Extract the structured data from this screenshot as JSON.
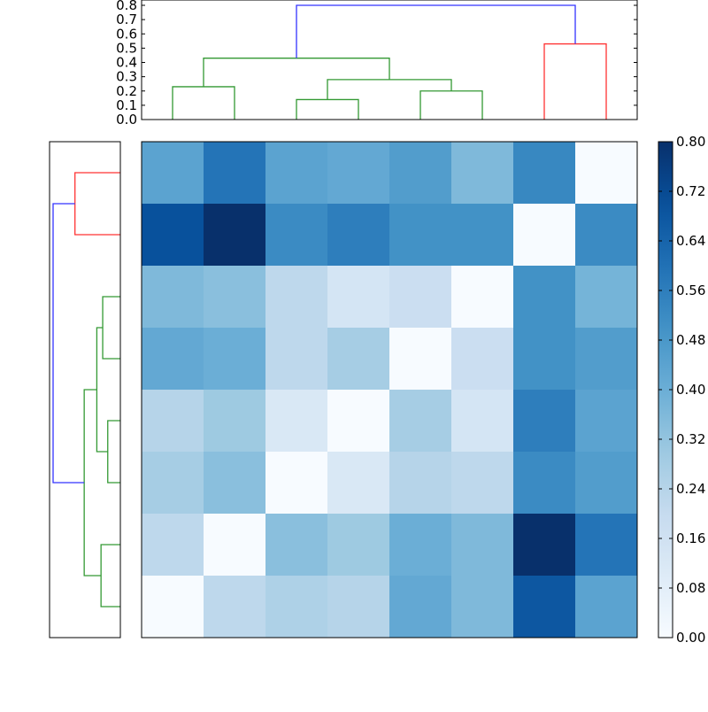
{
  "chart_data": [
    {
      "type": "heatmap",
      "colormap": "Blues",
      "vmin": 0.0,
      "vmax": 0.8,
      "rows": 8,
      "cols": 8,
      "values": [
        [
          0.44,
          0.59,
          0.44,
          0.42,
          0.46,
          0.36,
          0.53,
          0.0
        ],
        [
          0.7,
          0.8,
          0.52,
          0.56,
          0.5,
          0.5,
          0.0,
          0.52
        ],
        [
          0.36,
          0.34,
          0.22,
          0.14,
          0.18,
          0.0,
          0.5,
          0.38
        ],
        [
          0.42,
          0.4,
          0.22,
          0.28,
          0.0,
          0.18,
          0.5,
          0.46
        ],
        [
          0.24,
          0.3,
          0.12,
          0.0,
          0.28,
          0.14,
          0.56,
          0.44
        ],
        [
          0.28,
          0.34,
          0.0,
          0.12,
          0.24,
          0.22,
          0.52,
          0.46
        ],
        [
          0.22,
          0.0,
          0.34,
          0.3,
          0.4,
          0.36,
          0.8,
          0.59
        ],
        [
          0.0,
          0.22,
          0.26,
          0.24,
          0.42,
          0.36,
          0.68,
          0.44
        ]
      ],
      "colorbar": {
        "ticks": [
          "0.00",
          "0.08",
          "0.16",
          "0.24",
          "0.32",
          "0.40",
          "0.48",
          "0.56",
          "0.64",
          "0.72",
          "0.80"
        ]
      }
    },
    {
      "type": "dendrogram",
      "orientation": "top",
      "ylim": [
        0.0,
        0.8
      ],
      "yticks": [
        "0.0",
        "0.1",
        "0.2",
        "0.3",
        "0.4",
        "0.5",
        "0.6",
        "0.7",
        "0.8"
      ],
      "links": [
        {
          "left": 0,
          "right": 1,
          "height": 0.23,
          "left_height": 0,
          "right_height": 0,
          "color": "#339933"
        },
        {
          "left": 2,
          "right": 3,
          "height": 0.14,
          "left_height": 0,
          "right_height": 0,
          "color": "#339933"
        },
        {
          "left": 4,
          "right": 5,
          "height": 0.2,
          "left_height": 0,
          "right_height": 0,
          "color": "#339933"
        },
        {
          "left": 2.5,
          "right": 4.5,
          "height": 0.28,
          "left_height": 0.14,
          "right_height": 0.2,
          "color": "#339933"
        },
        {
          "left": 0.5,
          "right": 3.5,
          "height": 0.43,
          "left_height": 0.23,
          "right_height": 0.28,
          "color": "#339933"
        },
        {
          "left": 6,
          "right": 7,
          "height": 0.53,
          "left_height": 0,
          "right_height": 0,
          "color": "#ff3333"
        },
        {
          "left": 2,
          "right": 6.5,
          "height": 0.8,
          "left_height": 0.43,
          "right_height": 0.53,
          "color": "#3333ff"
        }
      ]
    },
    {
      "type": "dendrogram",
      "orientation": "left",
      "links": [
        {
          "left": 0,
          "right": 1,
          "height": 0.54,
          "left_height": 0,
          "right_height": 0,
          "color": "#ff3333"
        },
        {
          "left": 2,
          "right": 3,
          "height": 0.21,
          "left_height": 0,
          "right_height": 0,
          "color": "#339933"
        },
        {
          "left": 4,
          "right": 5,
          "height": 0.15,
          "left_height": 0,
          "right_height": 0,
          "color": "#339933"
        },
        {
          "left": 2.5,
          "right": 4.5,
          "height": 0.28,
          "left_height": 0.21,
          "right_height": 0.15,
          "color": "#339933"
        },
        {
          "left": 6,
          "right": 7,
          "height": 0.23,
          "left_height": 0,
          "right_height": 0,
          "color": "#339933"
        },
        {
          "left": 3.5,
          "right": 6.5,
          "height": 0.43,
          "left_height": 0.28,
          "right_height": 0.23,
          "color": "#339933"
        },
        {
          "left": 0.5,
          "right": 5,
          "height": 0.8,
          "left_height": 0.54,
          "right_height": 0.43,
          "color": "#3333ff"
        }
      ]
    }
  ]
}
